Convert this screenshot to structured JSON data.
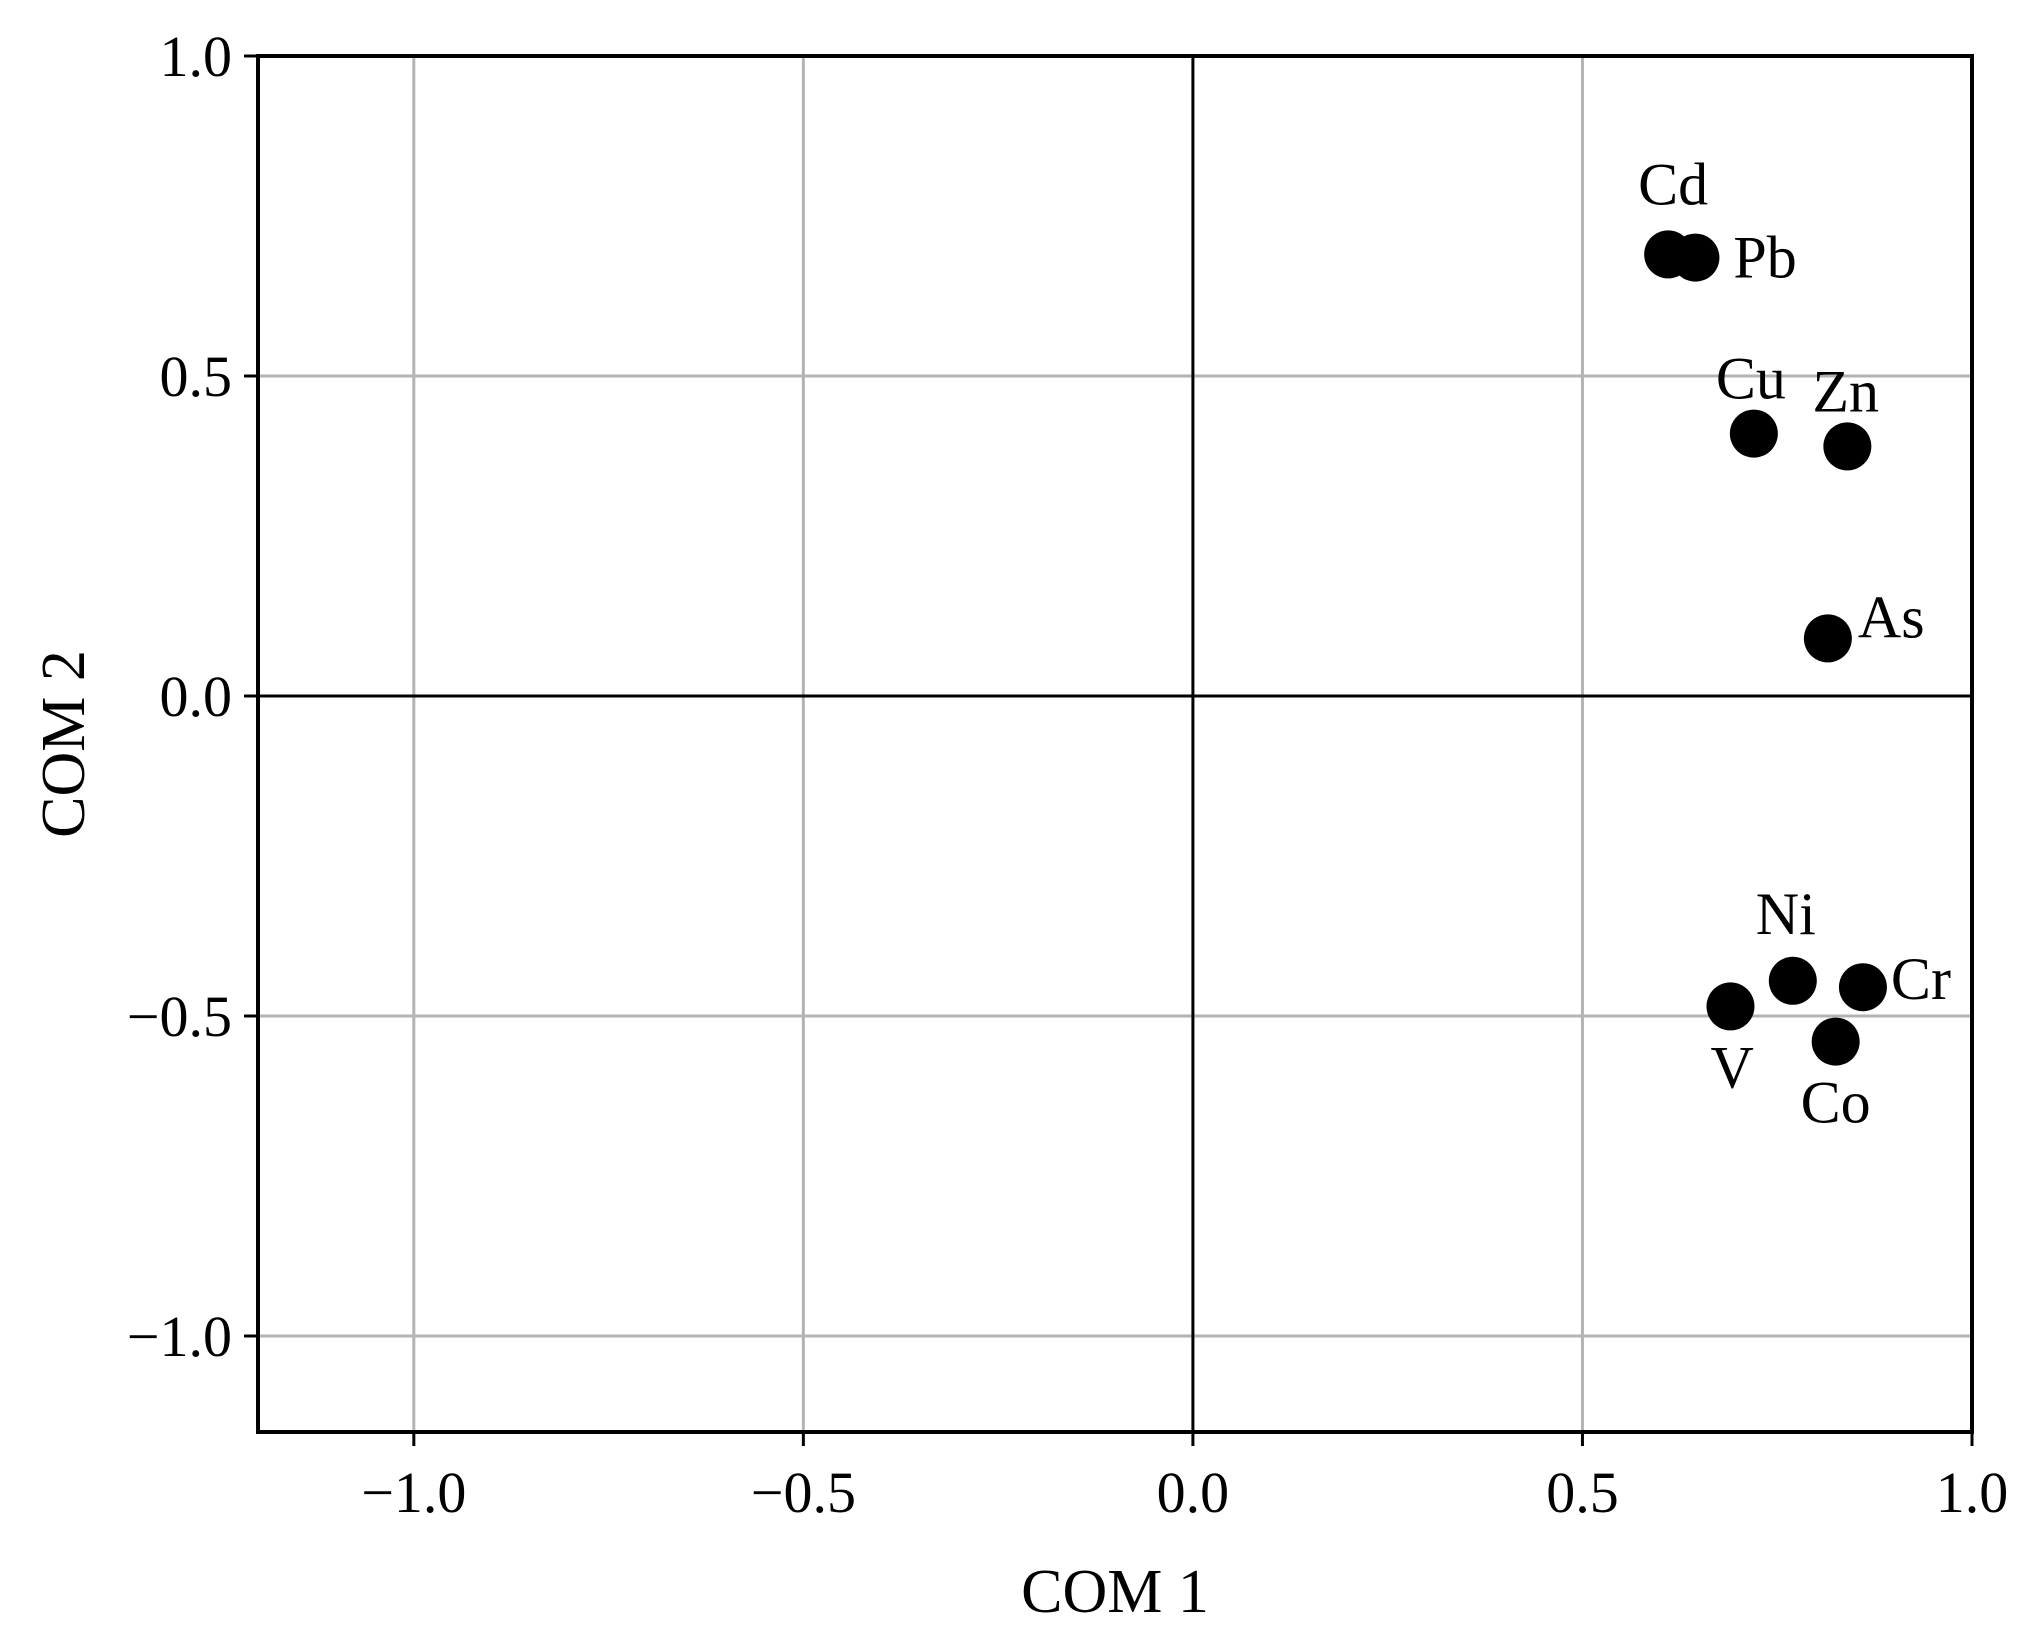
{
  "chart_data": {
    "type": "scatter",
    "title": "",
    "xlabel": "COM 1",
    "ylabel": "COM 2",
    "xlim": [
      -1.2,
      1.0
    ],
    "ylim": [
      -1.15,
      1.0
    ],
    "xticks": [
      -1.0,
      -0.5,
      0.0,
      0.5,
      1.0
    ],
    "yticks": [
      -1.0,
      -0.5,
      0.0,
      0.5,
      1.0
    ],
    "xtick_labels": [
      "−1.0",
      "−0.5",
      "0.0",
      "0.5",
      "1.0"
    ],
    "ytick_labels": [
      "−1.0",
      "−0.5",
      "0.0",
      "0.5",
      "1.0"
    ],
    "grid": true,
    "zero_lines": true,
    "marker_color": "#000000",
    "points": [
      {
        "label": "Cd",
        "x": 0.61,
        "y": 0.69
      },
      {
        "label": "Pb",
        "x": 0.645,
        "y": 0.685
      },
      {
        "label": "Cu",
        "x": 0.72,
        "y": 0.41
      },
      {
        "label": "Zn",
        "x": 0.84,
        "y": 0.39
      },
      {
        "label": "As",
        "x": 0.815,
        "y": 0.09
      },
      {
        "label": "Ni",
        "x": 0.77,
        "y": -0.445
      },
      {
        "label": "Cr",
        "x": 0.86,
        "y": -0.455
      },
      {
        "label": "V",
        "x": 0.69,
        "y": -0.485
      },
      {
        "label": "Co",
        "x": 0.825,
        "y": -0.54
      }
    ]
  }
}
